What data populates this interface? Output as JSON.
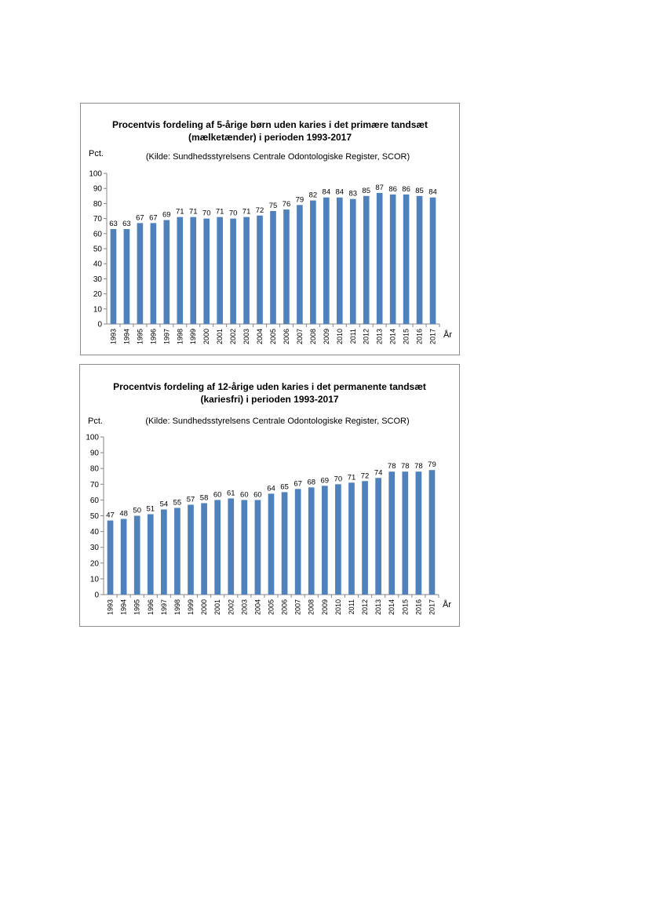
{
  "chart_data": [
    {
      "type": "bar",
      "title_line1": "Procentvis fordeling af 5-årige børn uden karies i det primære tandsæt",
      "title_line2": "(mælketænder) i perioden 1993-2017",
      "subtitle": "(Kilde: Sundhedsstyrelsens Centrale Odontologiske Register, SCOR)",
      "ylabel": "Pct.",
      "xlabel": "År",
      "ylim": [
        0,
        100
      ],
      "yticks": [
        0,
        10,
        20,
        30,
        40,
        50,
        60,
        70,
        80,
        90,
        100
      ],
      "categories": [
        "1993",
        "1994",
        "1995",
        "1996",
        "1997",
        "1998",
        "1999",
        "2000",
        "2001",
        "2002",
        "2003",
        "2004",
        "2005",
        "2006",
        "2007",
        "2008",
        "2009",
        "2010",
        "2011",
        "2012",
        "2013",
        "2014",
        "2015",
        "2016",
        "2017"
      ],
      "values": [
        63,
        63,
        67,
        67,
        69,
        71,
        71,
        70,
        71,
        70,
        71,
        72,
        75,
        76,
        79,
        82,
        84,
        84,
        83,
        85,
        87,
        86,
        86,
        85,
        84
      ],
      "bar_color": "#4f81bd",
      "grid": false
    },
    {
      "type": "bar",
      "title_line1": "Procentvis fordeling af 12-årige uden karies i det permanente tandsæt",
      "title_line2": "(kariesfri) i perioden 1993-2017",
      "subtitle": "(Kilde: Sundhedsstyrelsens Centrale Odontologiske Register, SCOR)",
      "ylabel": "Pct.",
      "xlabel": "År",
      "ylim": [
        0,
        100
      ],
      "yticks": [
        0,
        10,
        20,
        30,
        40,
        50,
        60,
        70,
        80,
        90,
        100
      ],
      "categories": [
        "1993",
        "1994",
        "1995",
        "1996",
        "1997",
        "1998",
        "1999",
        "2000",
        "2001",
        "2002",
        "2003",
        "2004",
        "2005",
        "2006",
        "2007",
        "2008",
        "2009",
        "2010",
        "2011",
        "2012",
        "2013",
        "2014",
        "2015",
        "2016",
        "2017"
      ],
      "values": [
        47,
        48,
        50,
        51,
        54,
        55,
        57,
        58,
        60,
        61,
        60,
        60,
        64,
        65,
        67,
        68,
        69,
        70,
        71,
        72,
        74,
        78,
        78,
        78,
        79
      ],
      "bar_color": "#4f81bd",
      "grid": false
    }
  ]
}
